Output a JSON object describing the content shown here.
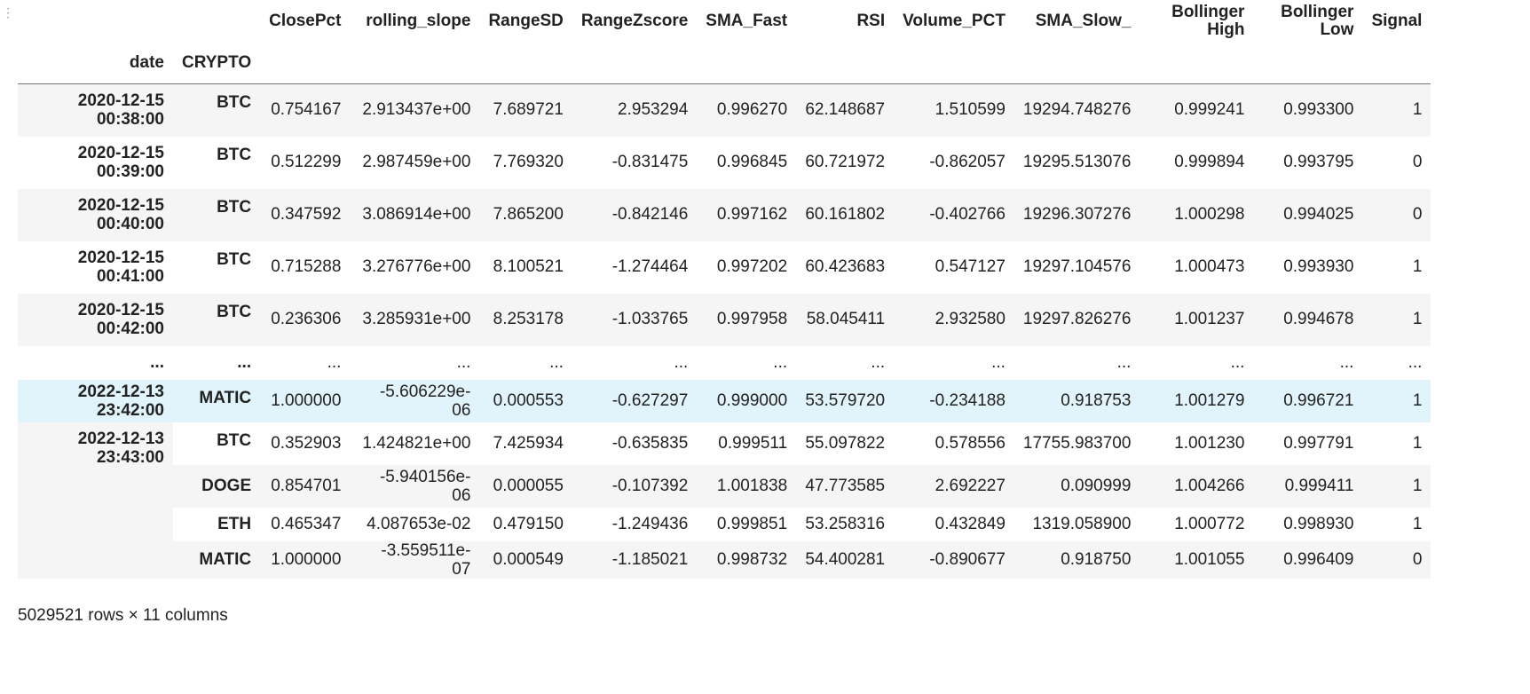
{
  "columns": [
    "ClosePct",
    "rolling_slope",
    "RangeSD",
    "RangeZscore",
    "SMA_Fast",
    "RSI",
    "Volume_PCT",
    "SMA_Slow_",
    "Bollinger High",
    "Bollinger Low",
    "Signal"
  ],
  "columns_split": {
    "boll_high": [
      "Bollinger",
      "High"
    ],
    "boll_low": [
      "Bollinger",
      "Low"
    ]
  },
  "index_names": [
    "date",
    "CRYPTO"
  ],
  "rows": [
    {
      "date": [
        "2020-12-15",
        "00:38:00"
      ],
      "crypto": "BTC",
      "v": [
        "0.754167",
        "2.913437e+00",
        "7.689721",
        "2.953294",
        "0.996270",
        "62.148687",
        "1.510599",
        "19294.748276",
        "0.999241",
        "0.993300",
        "1"
      ]
    },
    {
      "date": [
        "2020-12-15",
        "00:39:00"
      ],
      "crypto": "BTC",
      "v": [
        "0.512299",
        "2.987459e+00",
        "7.769320",
        "-0.831475",
        "0.996845",
        "60.721972",
        "-0.862057",
        "19295.513076",
        "0.999894",
        "0.993795",
        "0"
      ]
    },
    {
      "date": [
        "2020-12-15",
        "00:40:00"
      ],
      "crypto": "BTC",
      "v": [
        "0.347592",
        "3.086914e+00",
        "7.865200",
        "-0.842146",
        "0.997162",
        "60.161802",
        "-0.402766",
        "19296.307276",
        "1.000298",
        "0.994025",
        "0"
      ]
    },
    {
      "date": [
        "2020-12-15",
        "00:41:00"
      ],
      "crypto": "BTC",
      "v": [
        "0.715288",
        "3.276776e+00",
        "8.100521",
        "-1.274464",
        "0.997202",
        "60.423683",
        "0.547127",
        "19297.104576",
        "1.000473",
        "0.993930",
        "1"
      ]
    },
    {
      "date": [
        "2020-12-15",
        "00:42:00"
      ],
      "crypto": "BTC",
      "v": [
        "0.236306",
        "3.285931e+00",
        "8.253178",
        "-1.033765",
        "0.997958",
        "58.045411",
        "2.932580",
        "19297.826276",
        "1.001237",
        "0.994678",
        "1"
      ]
    },
    {
      "date": [
        "...",
        ""
      ],
      "crypto": "...",
      "v": [
        "...",
        "...",
        "...",
        "...",
        "...",
        "...",
        "...",
        "...",
        "...",
        "...",
        "..."
      ]
    },
    {
      "date": [
        "2022-12-13",
        "23:42:00"
      ],
      "crypto": "MATIC",
      "v": [
        "1.000000",
        "-5.606229e-06",
        "0.000553",
        "-0.627297",
        "0.999000",
        "53.579720",
        "-0.234188",
        "0.918753",
        "1.001279",
        "0.996721",
        "1"
      ]
    },
    {
      "date": [
        "2022-12-13",
        "23:43:00"
      ],
      "crypto": "BTC",
      "v": [
        "0.352903",
        "1.424821e+00",
        "7.425934",
        "-0.635835",
        "0.999511",
        "55.097822",
        "0.578556",
        "17755.983700",
        "1.001230",
        "0.997791",
        "1"
      ]
    },
    {
      "crypto": "DOGE",
      "v": [
        "0.854701",
        "-5.940156e-06",
        "0.000055",
        "-0.107392",
        "1.001838",
        "47.773585",
        "2.692227",
        "0.090999",
        "1.004266",
        "0.999411",
        "1"
      ]
    },
    {
      "crypto": "ETH",
      "v": [
        "0.465347",
        "4.087653e-02",
        "0.479150",
        "-1.249436",
        "0.999851",
        "53.258316",
        "0.432849",
        "1319.058900",
        "1.000772",
        "0.998930",
        "1"
      ]
    },
    {
      "crypto": "MATIC",
      "v": [
        "1.000000",
        "-3.559511e-07",
        "0.000549",
        "-1.185021",
        "0.998732",
        "54.400281",
        "-0.890677",
        "0.918750",
        "1.001055",
        "0.996409",
        "0"
      ]
    }
  ],
  "footer": "5029521 rows × 11 columns",
  "colors": {
    "stripe": "#f5f5f5",
    "hover": "#e1f3fb",
    "rule": "#777777"
  }
}
